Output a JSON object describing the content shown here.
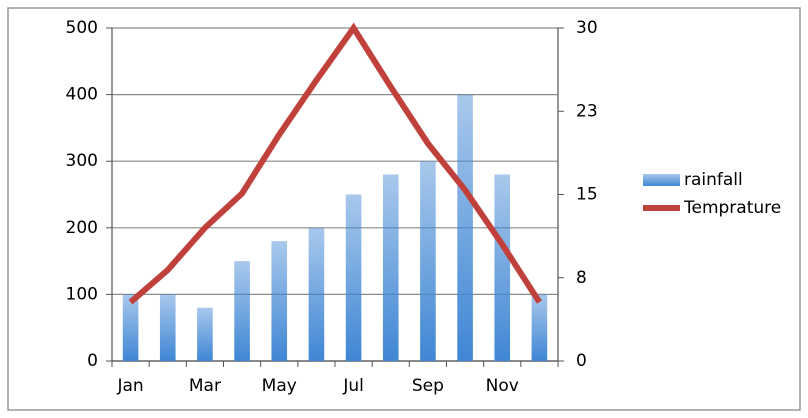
{
  "chart_data": {
    "type": "bar-line",
    "categories": [
      "Jan",
      null,
      "Mar",
      null,
      "May",
      null,
      "Jul",
      null,
      "Sep",
      null,
      "Nov",
      null
    ],
    "series": [
      {
        "name": "rainfall",
        "type": "bar",
        "color": "#3f86d4",
        "values": [
          100,
          100,
          80,
          150,
          180,
          200,
          250,
          280,
          300,
          400,
          280,
          100
        ]
      },
      {
        "name": "Temprature",
        "type": "line",
        "axis": "y2",
        "color": "#c0413c",
        "values": [
          5.3,
          8.2,
          12,
          15.1,
          20.4,
          25.3,
          30,
          24.7,
          19.6,
          15.4,
          10.5,
          5.3
        ]
      }
    ],
    "ylim": [
      0,
      500
    ],
    "yticks": [
      0,
      100,
      200,
      300,
      400,
      500
    ],
    "y2lim": [
      0,
      30
    ],
    "y2ticks": [
      0,
      {
        "value": 7.5,
        "label": "8"
      },
      15,
      {
        "value": 22.5,
        "label": "23"
      },
      30
    ],
    "grid": true,
    "legend": "right"
  }
}
